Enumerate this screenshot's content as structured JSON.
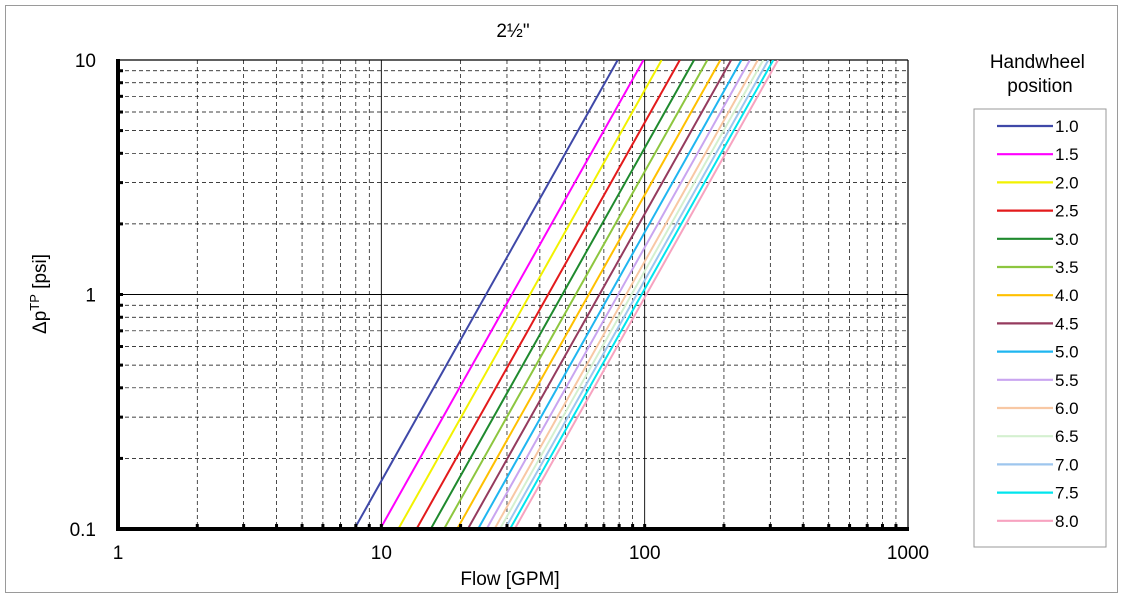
{
  "chart_data": {
    "type": "line",
    "title": "2½\"",
    "xlabel": "Flow [GPM]",
    "ylabel_main": "Δp",
    "ylabel_sup": "TP",
    "ylabel_unit": " [psi]",
    "x_scale": "log",
    "y_scale": "log",
    "xlim": [
      1,
      1000
    ],
    "ylim": [
      0.1,
      10
    ],
    "x_ticks": [
      1,
      10,
      100,
      1000
    ],
    "x_tick_labels": [
      "1",
      "10",
      "100",
      "1000"
    ],
    "y_ticks": [
      0.1,
      1,
      10
    ],
    "y_tick_labels": [
      "0.1",
      "1",
      "10"
    ],
    "grid": true,
    "legend_title": "Handwheel position",
    "legend_position": "right",
    "series": [
      {
        "name": "1.0",
        "color": "#3f48a8",
        "x": [
          7.9,
          79
        ],
        "y": [
          0.1,
          10
        ]
      },
      {
        "name": "1.5",
        "color": "#ff00ff",
        "x": [
          9.9,
          99
        ],
        "y": [
          0.1,
          10
        ]
      },
      {
        "name": "2.0",
        "color": "#f2f200",
        "x": [
          11.6,
          116
        ],
        "y": [
          0.1,
          10
        ]
      },
      {
        "name": "2.5",
        "color": "#e31a1c",
        "x": [
          13.6,
          136
        ],
        "y": [
          0.1,
          10
        ]
      },
      {
        "name": "3.0",
        "color": "#1f8a2e",
        "x": [
          15.4,
          154
        ],
        "y": [
          0.1,
          10
        ]
      },
      {
        "name": "3.5",
        "color": "#8dc63f",
        "x": [
          17.3,
          173
        ],
        "y": [
          0.1,
          10
        ]
      },
      {
        "name": "4.0",
        "color": "#ffc000",
        "x": [
          19.4,
          194
        ],
        "y": [
          0.1,
          10
        ]
      },
      {
        "name": "4.5",
        "color": "#953b5e",
        "x": [
          21.3,
          213
        ],
        "y": [
          0.1,
          10
        ]
      },
      {
        "name": "5.0",
        "color": "#1fb6f0",
        "x": [
          23.3,
          233
        ],
        "y": [
          0.1,
          10
        ]
      },
      {
        "name": "5.5",
        "color": "#c9a5f0",
        "x": [
          25.1,
          251
        ],
        "y": [
          0.1,
          10
        ]
      },
      {
        "name": "6.0",
        "color": "#f8c8a4",
        "x": [
          26.9,
          269
        ],
        "y": [
          0.1,
          10
        ]
      },
      {
        "name": "6.5",
        "color": "#d4f0d0",
        "x": [
          28.2,
          282
        ],
        "y": [
          0.1,
          10
        ]
      },
      {
        "name": "7.0",
        "color": "#9ec6ee",
        "x": [
          29.5,
          295
        ],
        "y": [
          0.1,
          10
        ]
      },
      {
        "name": "7.5",
        "color": "#00e5ee",
        "x": [
          30.8,
          308
        ],
        "y": [
          0.1,
          10
        ]
      },
      {
        "name": "8.0",
        "color": "#f7a3c0",
        "x": [
          32.1,
          321
        ],
        "y": [
          0.1,
          10
        ]
      }
    ]
  }
}
